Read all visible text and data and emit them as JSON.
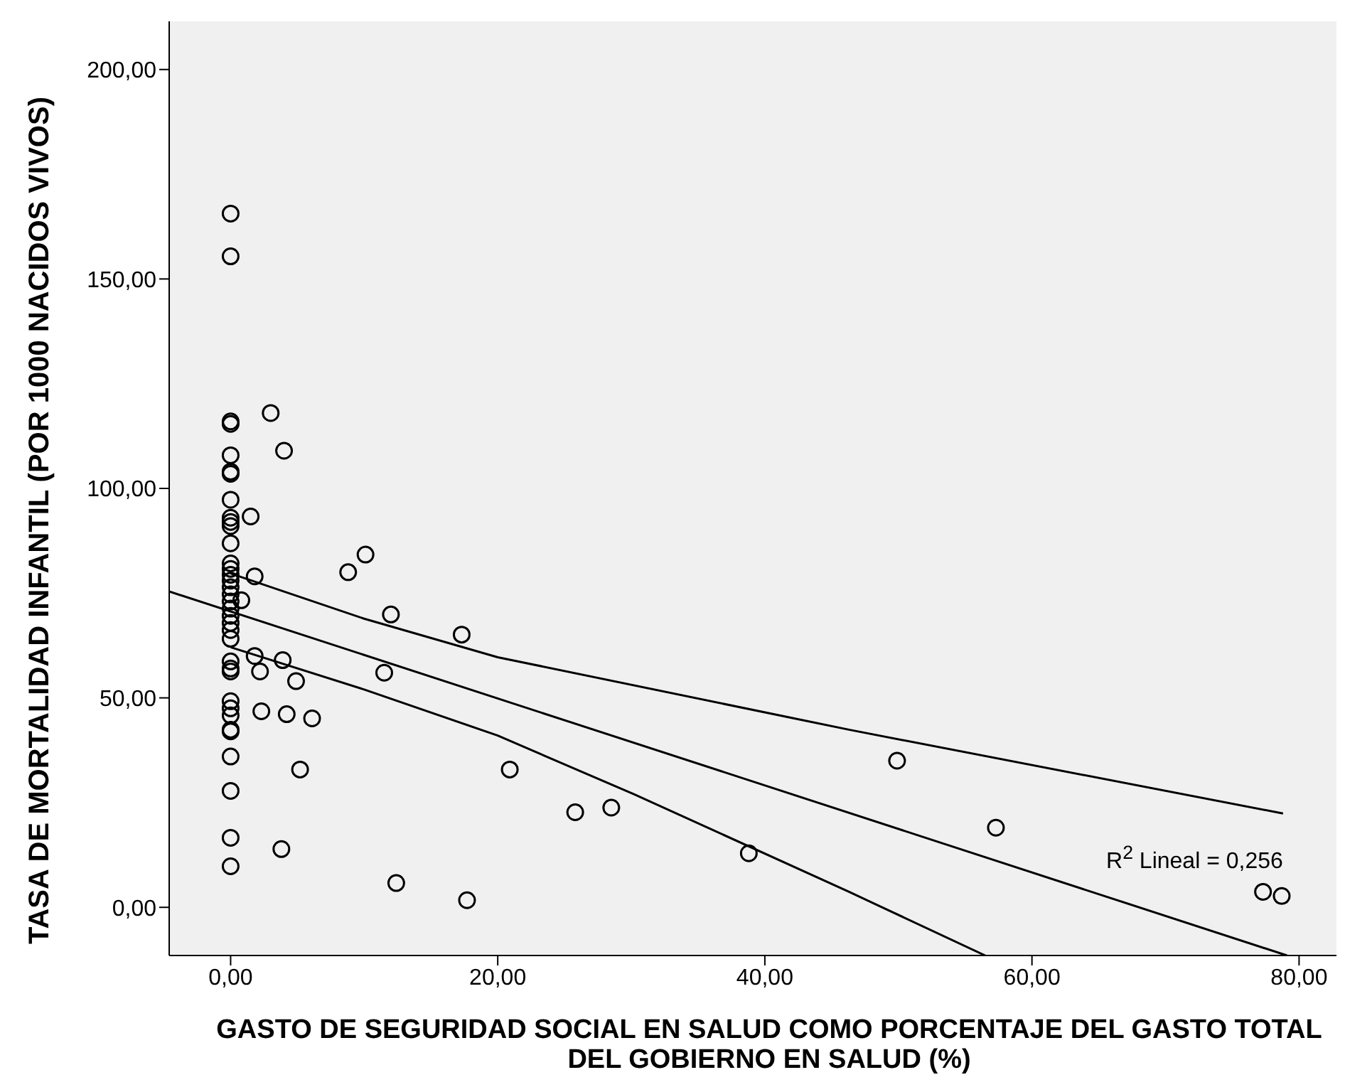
{
  "chart_data": {
    "type": "scatter",
    "xlabel": "GASTO DE SEGURIDAD SOCIAL EN SALUD COMO PORCENTAJE DEL GASTO TOTAL DEL GOBIERNO EN SALUD (%)",
    "ylabel": "TASA DE MORTALIDAD INFANTIL (POR 1000 NACIDOS VIVOS)",
    "annotations": [
      "R$^{2}$ Lineal = 0,256"
    ],
    "xlim": [
      -4.6,
      82.8
    ],
    "ylim": [
      -11.5,
      211.5
    ],
    "xticks": [
      {
        "value": 0,
        "label": "0,00"
      },
      {
        "value": 20,
        "label": "20,00"
      },
      {
        "value": 40,
        "label": "40,00"
      },
      {
        "value": 60,
        "label": "60,00"
      },
      {
        "value": 80,
        "label": "80,00"
      }
    ],
    "yticks": [
      {
        "value": 0,
        "label": "0,00"
      },
      {
        "value": 50,
        "label": "50,00"
      },
      {
        "value": 100,
        "label": "100,00"
      },
      {
        "value": 150,
        "label": "150,00"
      },
      {
        "value": 200,
        "label": "200,00"
      }
    ],
    "marker": "circle",
    "grid": false,
    "legend": false,
    "series": [
      {
        "color": "#000000",
        "x": [
          0,
          0,
          0,
          0,
          0,
          0,
          0,
          0,
          0,
          0,
          0,
          0,
          0,
          0,
          0,
          0,
          0,
          0,
          0,
          0,
          0,
          0,
          0,
          0,
          0,
          0,
          0,
          0,
          0,
          0,
          0,
          0,
          0,
          0,
          0,
          0,
          3.0,
          4.0,
          1.5,
          1.8,
          0.8,
          1.8,
          2.2,
          3.9,
          4.9,
          2.3,
          4.2,
          6.1,
          5.2,
          3.8,
          8.8,
          10.1,
          12.0,
          11.5,
          17.3,
          12.4,
          17.7,
          20.9,
          25.8,
          28.5,
          38.8,
          49.9,
          57.3,
          77.3,
          78.7
        ],
        "values": [
          165.6,
          155.4,
          116,
          115.4,
          107.9,
          104,
          103.5,
          97.3,
          93,
          92,
          91,
          86.9,
          82.1,
          80.8,
          79.4,
          78,
          76.4,
          74.7,
          73,
          71.3,
          69.6,
          67.9,
          66.2,
          64.1,
          58.7,
          57,
          56.3,
          49.2,
          47.5,
          45.8,
          42.4,
          42,
          36,
          27.8,
          16.6,
          9.8,
          118,
          109,
          93.3,
          79,
          73.3,
          60,
          56.3,
          59,
          54,
          46.8,
          46.1,
          45.1,
          32.9,
          13.9,
          80,
          84.2,
          69.9,
          56,
          65.1,
          5.8,
          1.7,
          32.9,
          22.7,
          23.8,
          12.9,
          35,
          19,
          3.7,
          2.7
        ]
      },
      {
        "type": "line",
        "color": "#000000",
        "line_style": "solid",
        "marker": "none",
        "x": [
          -4.6,
          79.1
        ],
        "values": [
          75.4,
          -11.5
        ]
      },
      {
        "type": "line",
        "color": "#000000",
        "line_style": "solid",
        "marker": "none",
        "x": [
          0,
          10,
          20,
          46.3,
          78.8
        ],
        "values": [
          79.7,
          68.9,
          59.7,
          42.4,
          22.4
        ]
      },
      {
        "type": "line",
        "color": "#000000",
        "line_style": "solid",
        "marker": "none",
        "x": [
          0,
          10,
          20,
          30.2,
          46.3,
          56.5
        ],
        "values": [
          62.1,
          52,
          41,
          27,
          3.7,
          -11.5
        ]
      }
    ]
  }
}
